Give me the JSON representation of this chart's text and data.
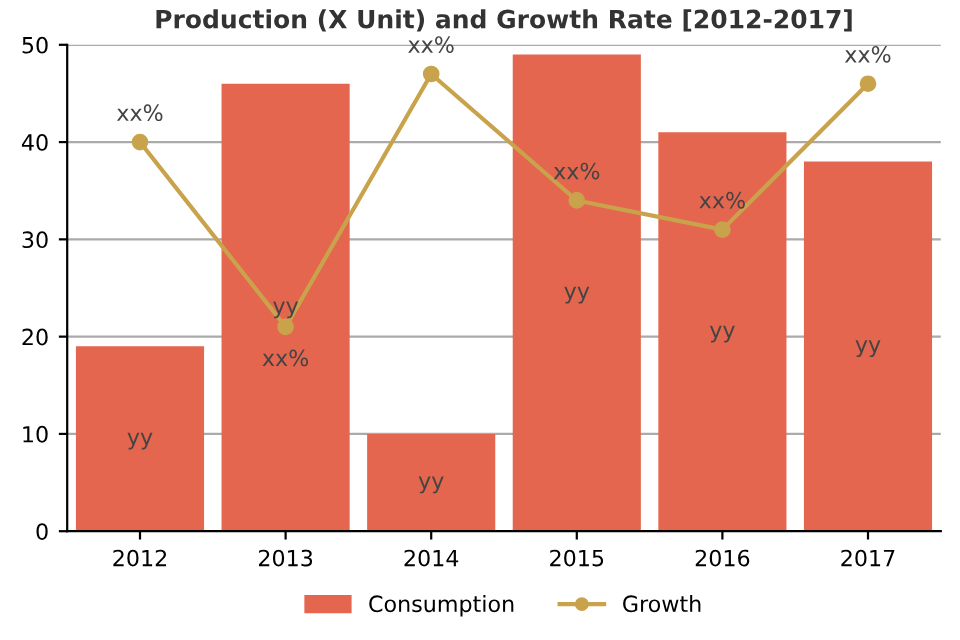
{
  "chart_data": {
    "type": "bar",
    "title": "Production (X Unit) and Growth Rate [2012-2017]",
    "categories": [
      "2012",
      "2013",
      "2014",
      "2015",
      "2016",
      "2017"
    ],
    "series": [
      {
        "name": "Consumption",
        "color": "#e5664e",
        "values": [
          19,
          46,
          10,
          49,
          41,
          38
        ],
        "value_labels": [
          "yy",
          "yy",
          "yy",
          "yy",
          "yy",
          "yy"
        ]
      },
      {
        "name": "Growth",
        "type": "line",
        "color": "#c9a34c",
        "values": [
          40,
          21,
          47,
          34,
          31,
          46
        ],
        "value_labels": [
          "xx%",
          "xx%",
          "xx%",
          "xx%",
          "xx%",
          "xx%"
        ],
        "marker": "circle"
      }
    ],
    "ylim": [
      0,
      50
    ],
    "yticks": [
      0,
      10,
      20,
      30,
      40,
      50
    ],
    "grid": "y",
    "legend": "bottom"
  }
}
